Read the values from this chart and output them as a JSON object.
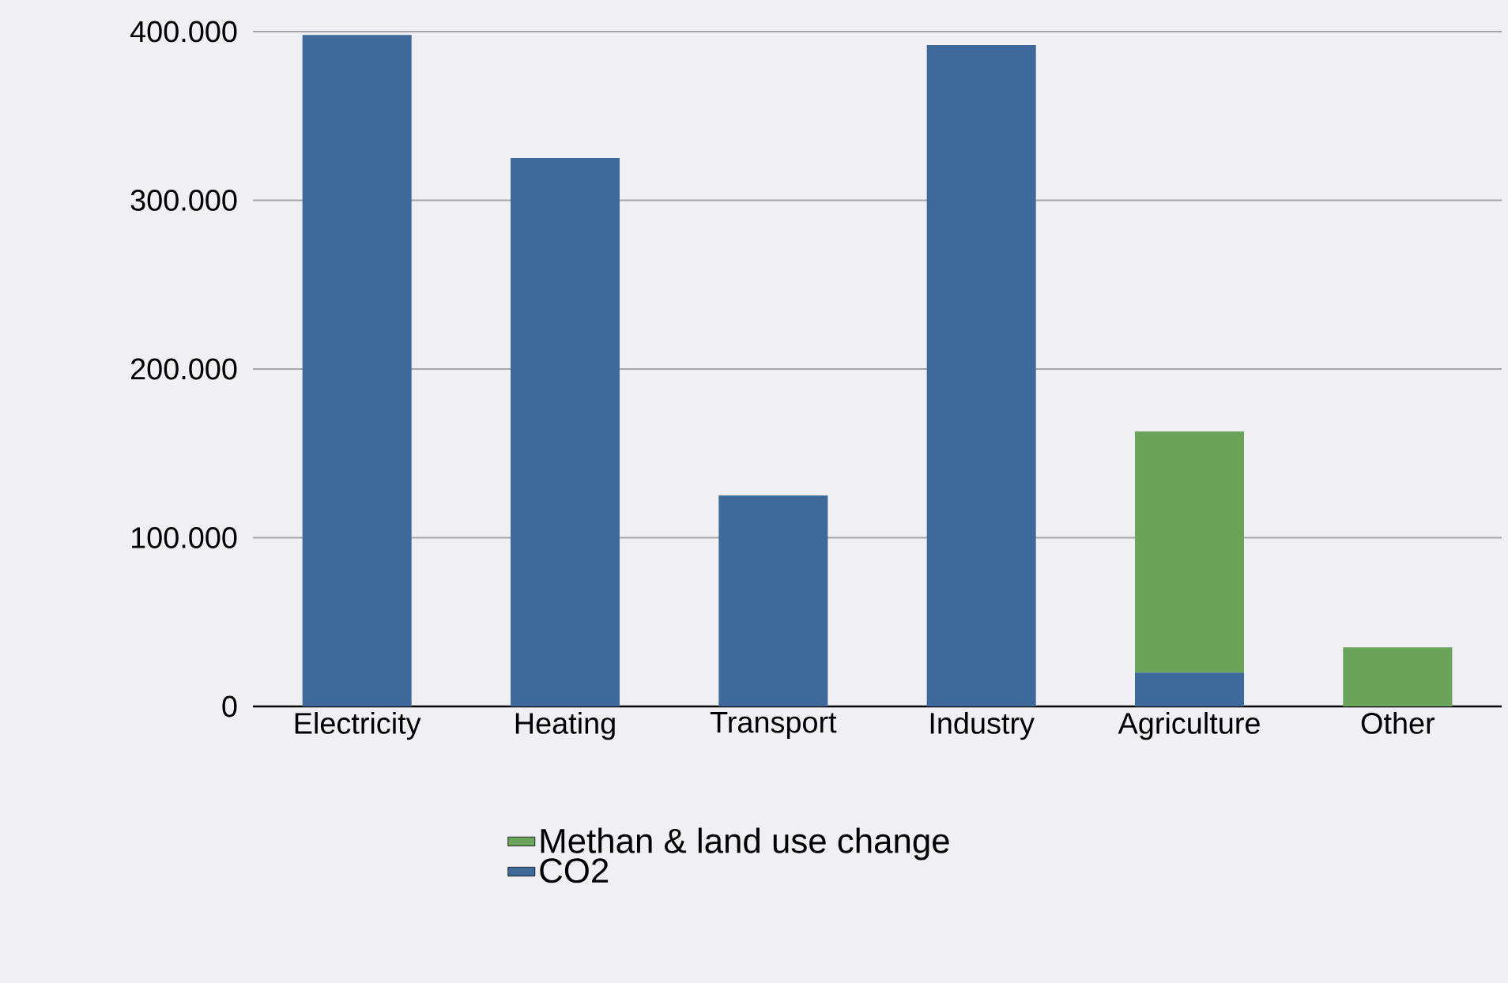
{
  "chart_data": {
    "type": "bar",
    "stacked": true,
    "categories": [
      "Electricity",
      "Heating",
      "Transport",
      "Industry",
      "Agriculture",
      "Other"
    ],
    "series": [
      {
        "name": "CO2",
        "color": "#3d6a9b",
        "values": [
          398000,
          325000,
          125000,
          392000,
          20000,
          0
        ]
      },
      {
        "name": "Methan & land use change",
        "color": "#6aa45a",
        "values": [
          0,
          0,
          0,
          0,
          143000,
          35000
        ]
      }
    ],
    "ylim": [
      0,
      400000
    ],
    "yticks": [
      {
        "value": 0,
        "label": "0"
      },
      {
        "value": 100000,
        "label": "100.000"
      },
      {
        "value": 200000,
        "label": "200.000"
      },
      {
        "value": 300000,
        "label": "300.000"
      },
      {
        "value": 400000,
        "label": "400.000"
      }
    ],
    "grid": "y",
    "legend": "bottom"
  }
}
